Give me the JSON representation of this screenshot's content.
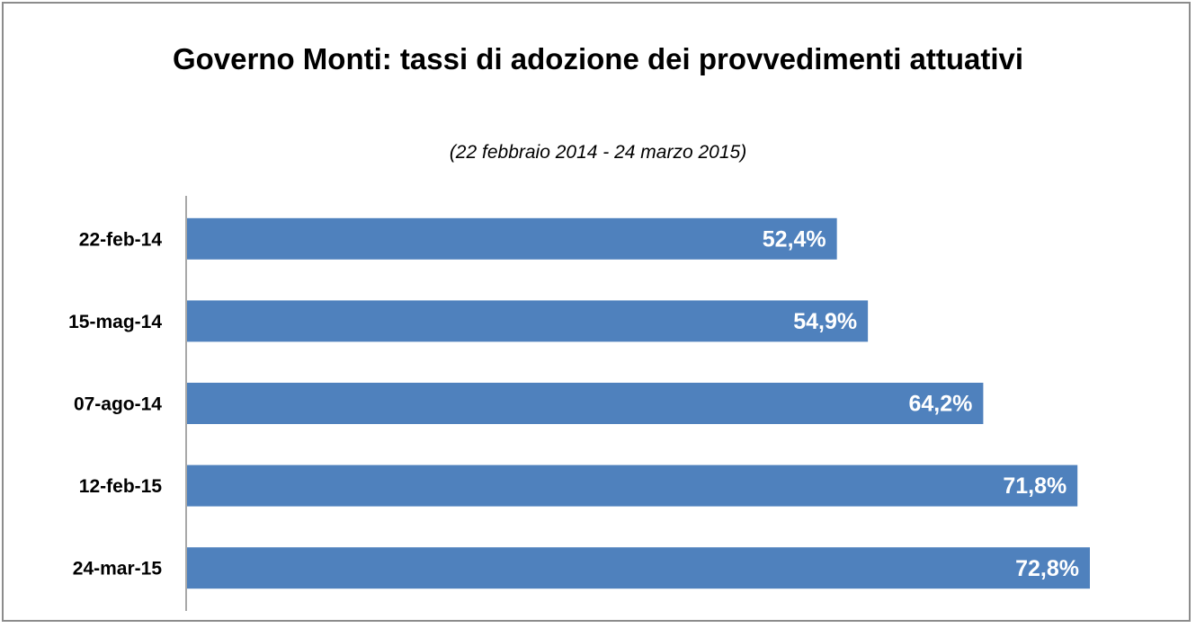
{
  "chart_data": {
    "type": "bar",
    "orientation": "horizontal",
    "title": "Governo Monti: tassi di adozione dei provvedimenti attuativi",
    "subtitle": "(22 febbraio 2014 - 24 marzo 2015)",
    "categories": [
      "22-feb-14",
      "15-mag-14",
      "07-ago-14",
      "12-feb-15",
      "24-mar-15"
    ],
    "values": [
      52.4,
      54.9,
      64.2,
      71.8,
      72.8
    ],
    "value_labels": [
      "52,4%",
      "54,9%",
      "64,2%",
      "71,8%",
      "72,8%"
    ],
    "color": "#4f81bd"
  }
}
